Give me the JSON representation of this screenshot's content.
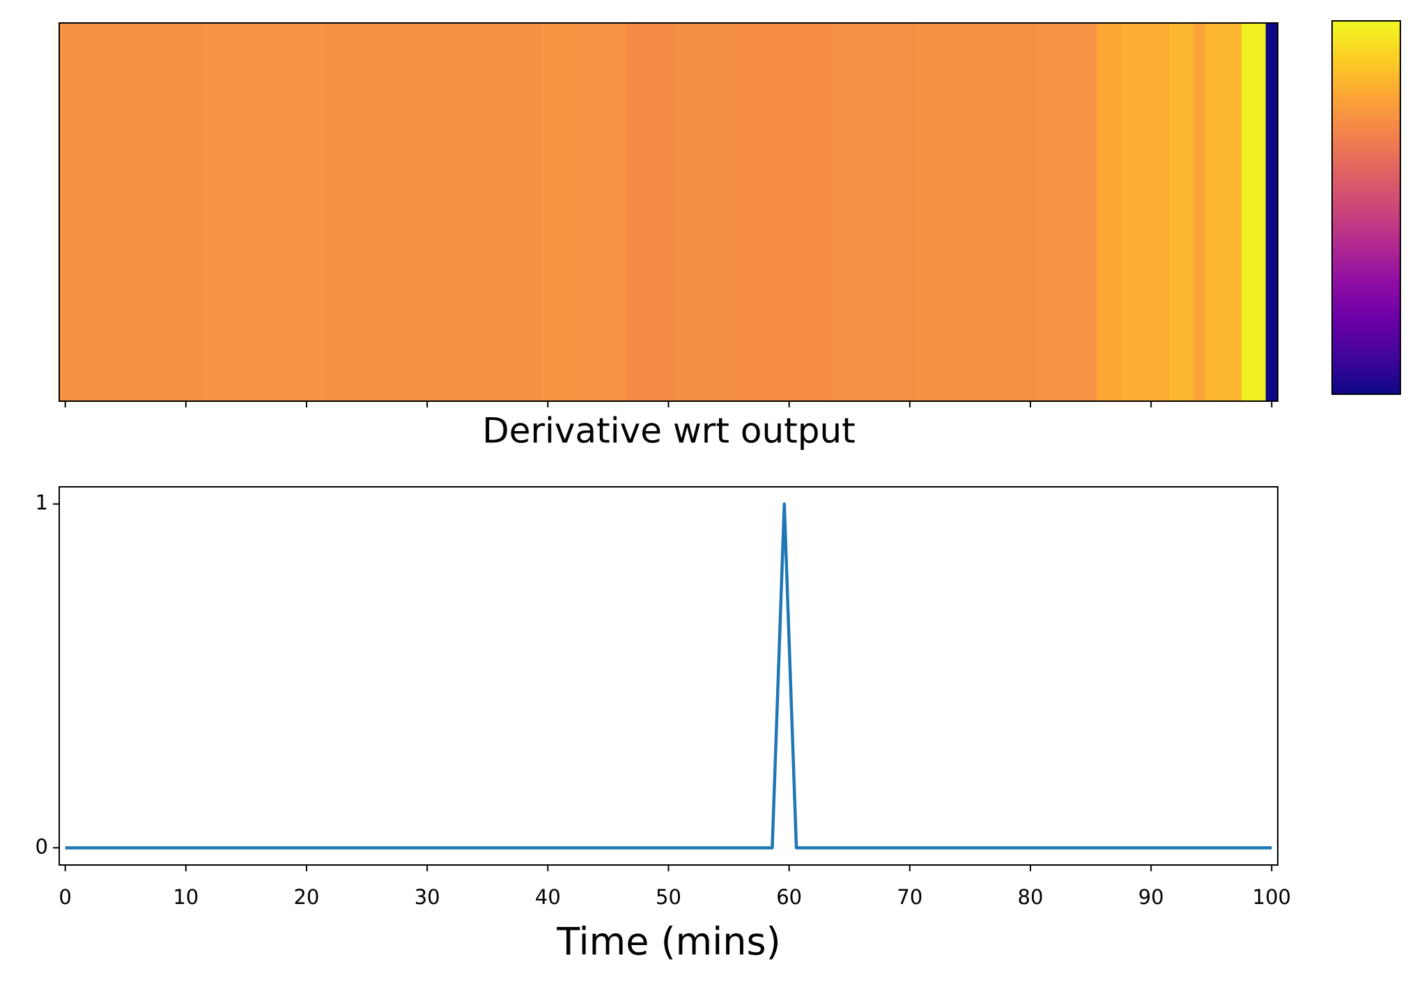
{
  "chart_data": [
    {
      "type": "heatmap",
      "colormap": "plasma",
      "vlim": [
        0,
        1
      ],
      "values": [
        0.74,
        0.74,
        0.74,
        0.74,
        0.74,
        0.74,
        0.74,
        0.74,
        0.74,
        0.74,
        0.74,
        0.74,
        0.745,
        0.745,
        0.745,
        0.745,
        0.745,
        0.745,
        0.745,
        0.745,
        0.745,
        0.745,
        0.74,
        0.74,
        0.74,
        0.74,
        0.74,
        0.74,
        0.74,
        0.74,
        0.74,
        0.74,
        0.74,
        0.74,
        0.74,
        0.74,
        0.74,
        0.74,
        0.74,
        0.74,
        0.75,
        0.75,
        0.75,
        0.745,
        0.745,
        0.745,
        0.745,
        0.72,
        0.72,
        0.72,
        0.72,
        0.73,
        0.73,
        0.73,
        0.73,
        0.725,
        0.725,
        0.725,
        0.725,
        0.725,
        0.725,
        0.725,
        0.725,
        0.725,
        0.735,
        0.735,
        0.735,
        0.735,
        0.735,
        0.735,
        0.735,
        0.74,
        0.74,
        0.74,
        0.74,
        0.74,
        0.74,
        0.74,
        0.74,
        0.74,
        0.74,
        0.745,
        0.745,
        0.745,
        0.745,
        0.745,
        0.8,
        0.8,
        0.82,
        0.82,
        0.82,
        0.82,
        0.84,
        0.84,
        0.79,
        0.84,
        0.84,
        0.84,
        0.98,
        0.98,
        0
      ],
      "xlim": [
        -0.5,
        100.5
      ],
      "xticks": [
        0,
        10,
        20,
        30,
        40,
        50,
        60,
        70,
        80,
        90,
        100
      ]
    },
    {
      "type": "line",
      "title": "Derivative wrt output",
      "x_label": "Time (mins)",
      "x": [
        0,
        58.6,
        59.6,
        60.6,
        100
      ],
      "values": [
        0,
        0,
        1,
        0,
        0
      ],
      "color": "#1f77b4",
      "xlim": [
        -0.5,
        100.5
      ],
      "ylim": [
        -0.05,
        1.05
      ],
      "xticks": [
        0,
        10,
        20,
        30,
        40,
        50,
        60,
        70,
        80,
        90,
        100
      ],
      "yticks": [
        0,
        1
      ]
    }
  ]
}
